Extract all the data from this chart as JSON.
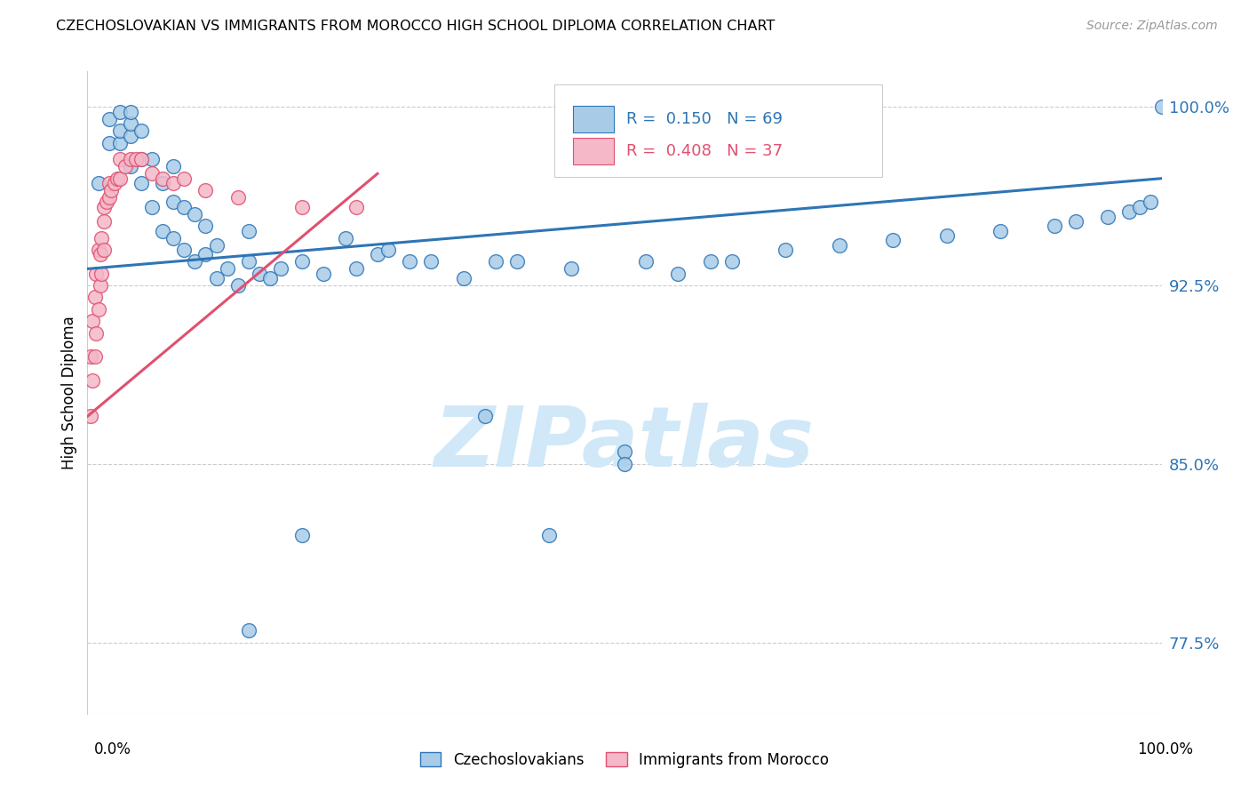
{
  "title": "CZECHOSLOVAKIAN VS IMMIGRANTS FROM MOROCCO HIGH SCHOOL DIPLOMA CORRELATION CHART",
  "source": "Source: ZipAtlas.com",
  "ylabel": "High School Diploma",
  "legend_blue_r_val": "0.150",
  "legend_blue_n_val": "69",
  "legend_pink_r_val": "0.408",
  "legend_pink_n_val": "37",
  "legend_label1": "Czechoslovakians",
  "legend_label2": "Immigrants from Morocco",
  "ytick_labels": [
    "77.5%",
    "85.0%",
    "92.5%",
    "100.0%"
  ],
  "ytick_values": [
    0.775,
    0.85,
    0.925,
    1.0
  ],
  "xlim": [
    0.0,
    1.0
  ],
  "ylim": [
    0.745,
    1.015
  ],
  "blue_color": "#a8cce8",
  "pink_color": "#f4b8c8",
  "line_blue": "#2e75b6",
  "line_pink": "#e05070",
  "tick_color": "#2e75b6",
  "watermark_color": "#d0e8f8",
  "blue_x": [
    0.01,
    0.02,
    0.02,
    0.03,
    0.03,
    0.03,
    0.04,
    0.04,
    0.04,
    0.04,
    0.05,
    0.05,
    0.05,
    0.06,
    0.06,
    0.07,
    0.07,
    0.08,
    0.08,
    0.08,
    0.09,
    0.09,
    0.1,
    0.1,
    0.11,
    0.11,
    0.12,
    0.12,
    0.13,
    0.14,
    0.15,
    0.15,
    0.16,
    0.17,
    0.18,
    0.2,
    0.22,
    0.24,
    0.25,
    0.27,
    0.28,
    0.3,
    0.32,
    0.35,
    0.38,
    0.4,
    0.45,
    0.5,
    0.52,
    0.55,
    0.58,
    0.6,
    0.65,
    0.7,
    0.75,
    0.8,
    0.85,
    0.9,
    0.92,
    0.95,
    0.97,
    0.98,
    0.99,
    1.0,
    0.5,
    0.37,
    0.43,
    0.15,
    0.2
  ],
  "blue_y": [
    0.968,
    0.985,
    0.995,
    0.985,
    0.99,
    0.998,
    0.975,
    0.988,
    0.993,
    0.998,
    0.968,
    0.978,
    0.99,
    0.958,
    0.978,
    0.948,
    0.968,
    0.945,
    0.96,
    0.975,
    0.94,
    0.958,
    0.935,
    0.955,
    0.938,
    0.95,
    0.928,
    0.942,
    0.932,
    0.925,
    0.935,
    0.948,
    0.93,
    0.928,
    0.932,
    0.935,
    0.93,
    0.945,
    0.932,
    0.938,
    0.94,
    0.935,
    0.935,
    0.928,
    0.935,
    0.935,
    0.932,
    0.855,
    0.935,
    0.93,
    0.935,
    0.935,
    0.94,
    0.942,
    0.944,
    0.946,
    0.948,
    0.95,
    0.952,
    0.954,
    0.956,
    0.958,
    0.96,
    1.0,
    0.85,
    0.87,
    0.82,
    0.78,
    0.82
  ],
  "pink_x": [
    0.003,
    0.003,
    0.005,
    0.005,
    0.007,
    0.007,
    0.008,
    0.008,
    0.01,
    0.01,
    0.012,
    0.012,
    0.013,
    0.013,
    0.015,
    0.015,
    0.015,
    0.018,
    0.02,
    0.02,
    0.022,
    0.025,
    0.028,
    0.03,
    0.03,
    0.035,
    0.04,
    0.045,
    0.05,
    0.06,
    0.07,
    0.08,
    0.09,
    0.11,
    0.14,
    0.2,
    0.25
  ],
  "pink_y": [
    0.87,
    0.895,
    0.885,
    0.91,
    0.895,
    0.92,
    0.905,
    0.93,
    0.915,
    0.94,
    0.925,
    0.938,
    0.93,
    0.945,
    0.94,
    0.952,
    0.958,
    0.96,
    0.962,
    0.968,
    0.965,
    0.968,
    0.97,
    0.97,
    0.978,
    0.975,
    0.978,
    0.978,
    0.978,
    0.972,
    0.97,
    0.968,
    0.97,
    0.965,
    0.962,
    0.958,
    0.958
  ],
  "blue_line_x0": 0.0,
  "blue_line_y0": 0.932,
  "blue_line_x1": 1.0,
  "blue_line_y1": 0.97,
  "pink_line_x0": 0.0,
  "pink_line_y0": 0.87,
  "pink_line_x1": 0.27,
  "pink_line_y1": 0.972
}
